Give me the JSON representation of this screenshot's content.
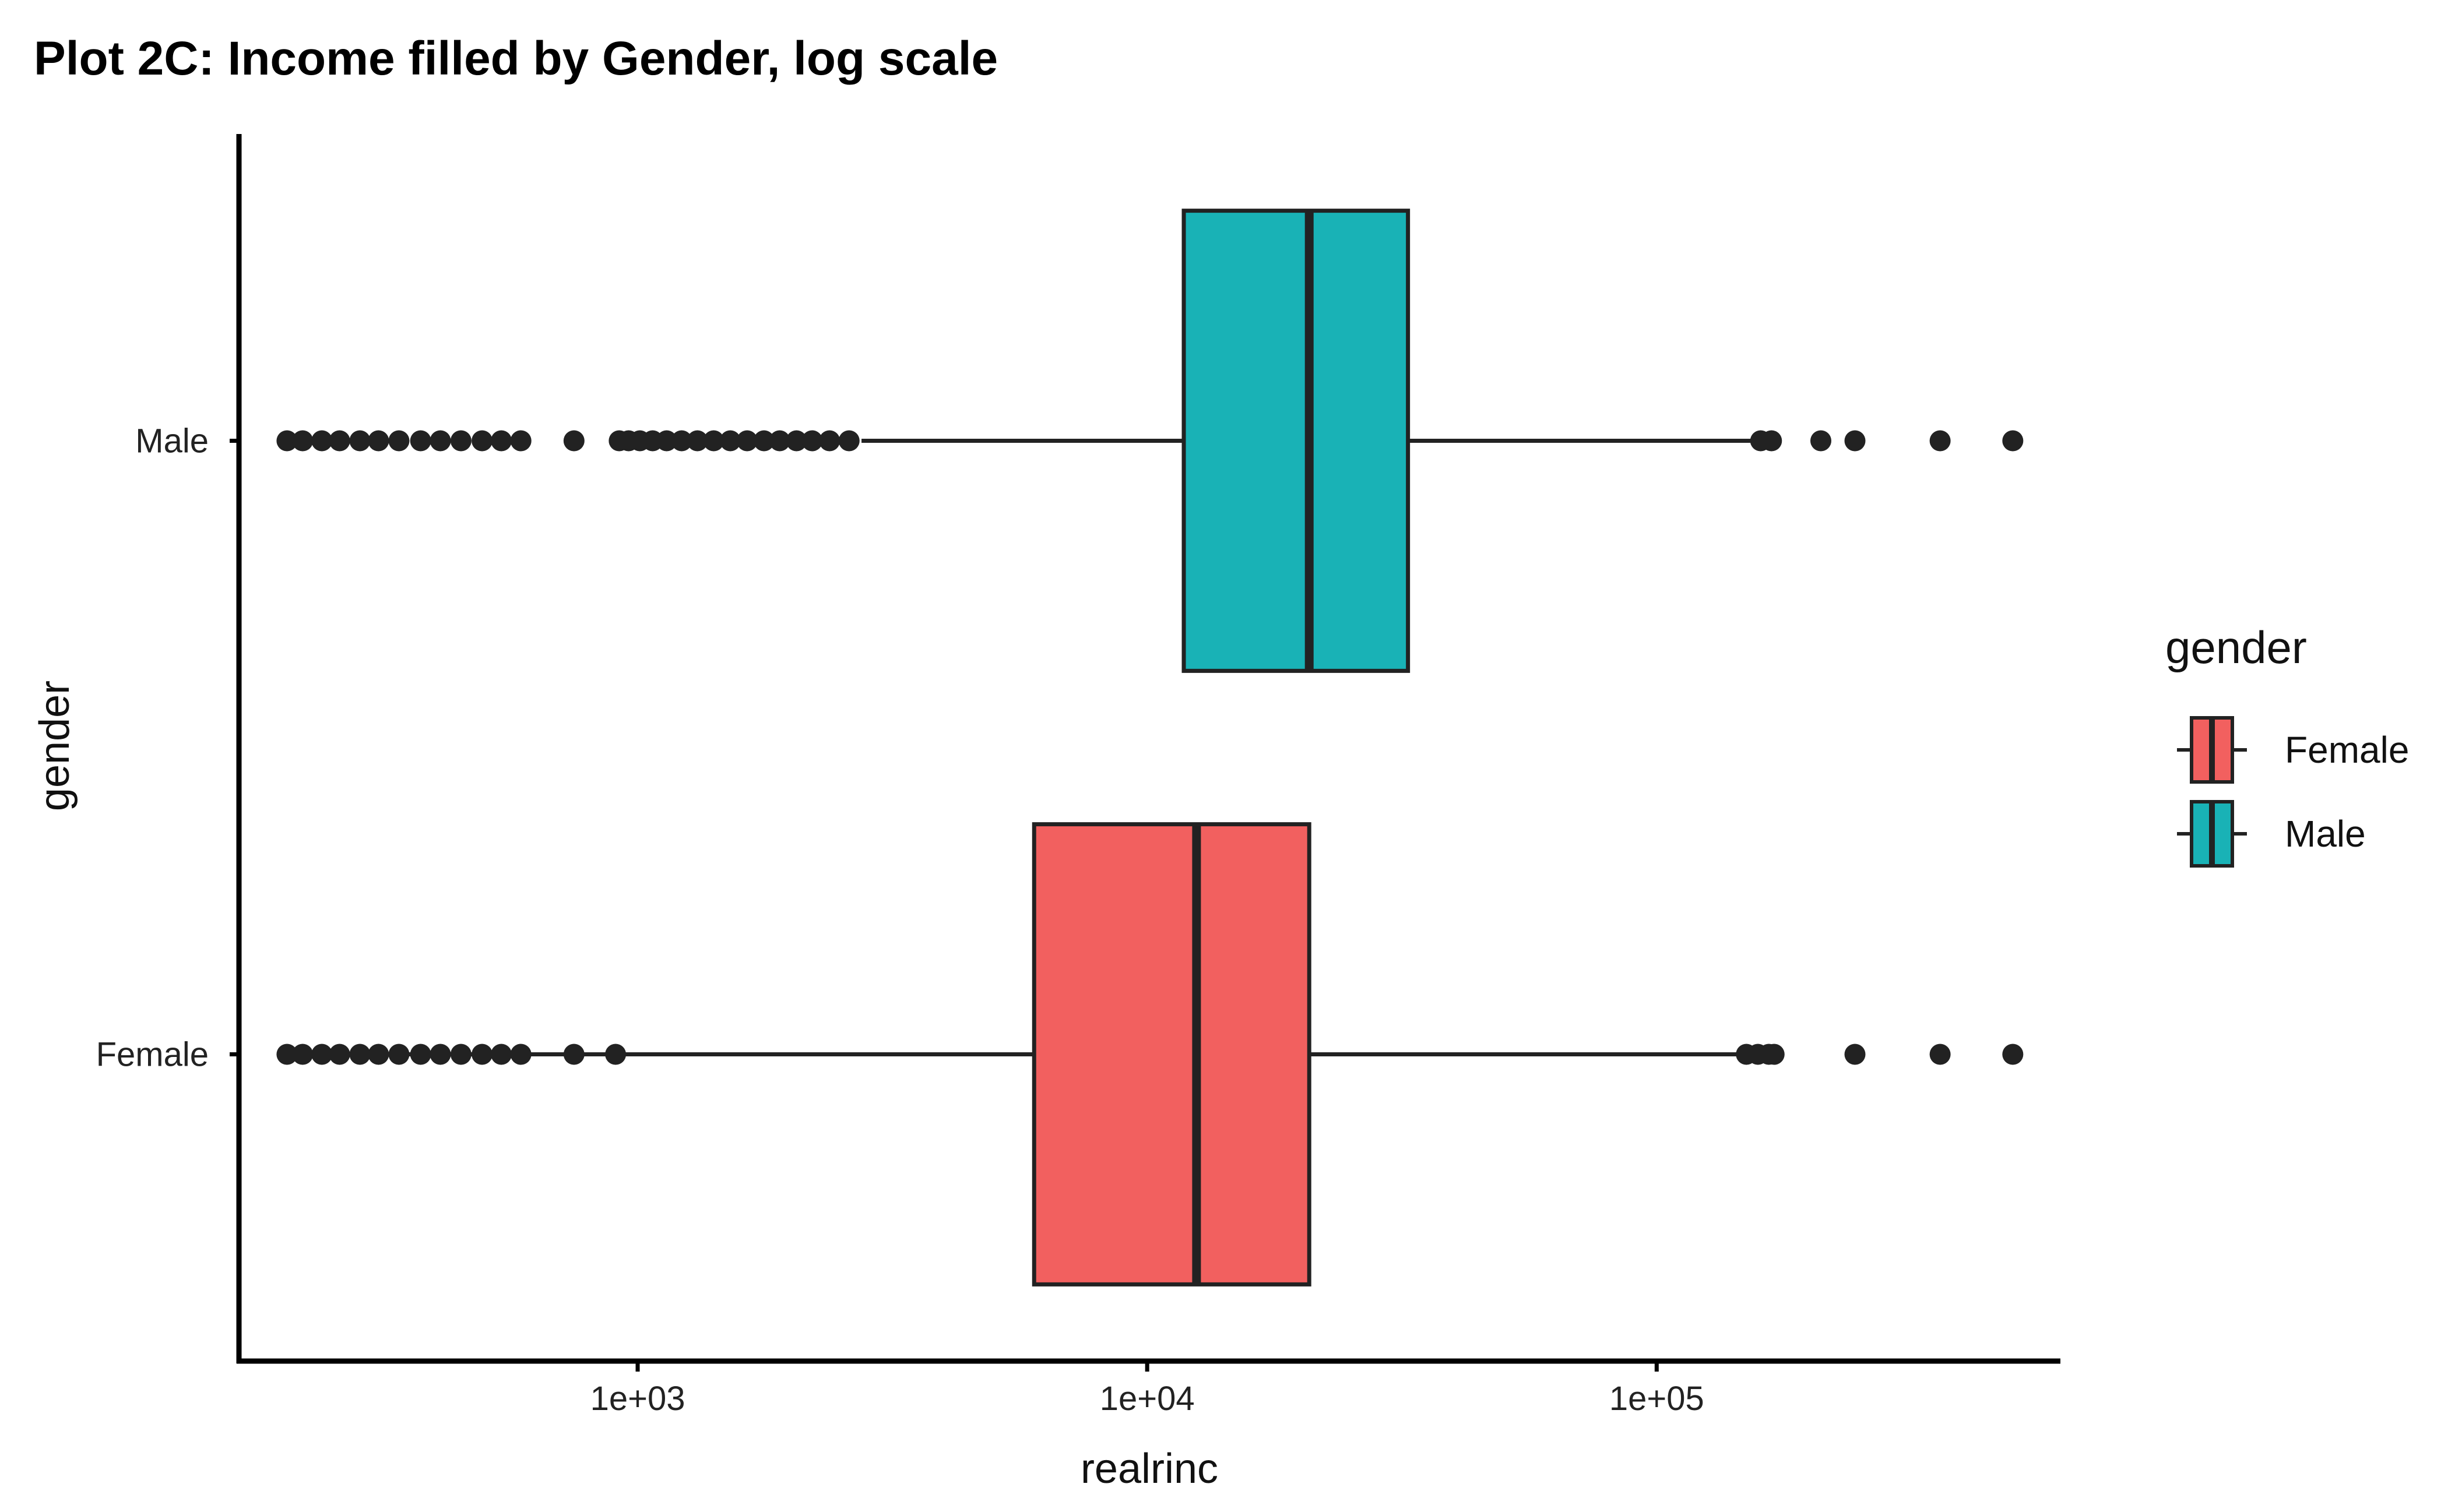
{
  "chart_data": {
    "type": "boxplot",
    "orientation": "horizontal",
    "title": "Plot 2C: Income filled by Gender, log scale",
    "xlabel": "realrinc",
    "ylabel": "gender",
    "x_scale": "log10",
    "xlim": [
      165,
      620000
    ],
    "x_ticks": [
      {
        "value": 1000,
        "label": "1e+03"
      },
      {
        "value": 10000,
        "label": "1e+04"
      },
      {
        "value": 100000,
        "label": "1e+05"
      }
    ],
    "categories": [
      "Female",
      "Male"
    ],
    "series": [
      {
        "name": "Female",
        "color": "#F2605F",
        "min": 205,
        "q1": 6000,
        "median": 12500,
        "q3": 20800,
        "max": 150000,
        "outliers": [
          205,
          220,
          240,
          260,
          285,
          310,
          340,
          375,
          410,
          450,
          495,
          540,
          590,
          750,
          905,
          150000,
          158000,
          166000,
          170000,
          245000,
          360000,
          500000
        ]
      },
      {
        "name": "Male",
        "color": "#19B2B6",
        "min": 2750,
        "q1": 11800,
        "median": 20800,
        "q3": 32500,
        "max": 160000,
        "outliers": [
          205,
          220,
          240,
          260,
          285,
          310,
          340,
          375,
          410,
          450,
          495,
          540,
          590,
          750,
          920,
          960,
          1010,
          1070,
          1140,
          1220,
          1310,
          1410,
          1520,
          1640,
          1770,
          1900,
          2050,
          2200,
          2380,
          2600,
          160000,
          168000,
          210000,
          245000,
          360000,
          500000
        ]
      }
    ],
    "legend": {
      "title": "gender",
      "position": "right",
      "entries": [
        "Female",
        "Male"
      ]
    },
    "grid": false
  }
}
